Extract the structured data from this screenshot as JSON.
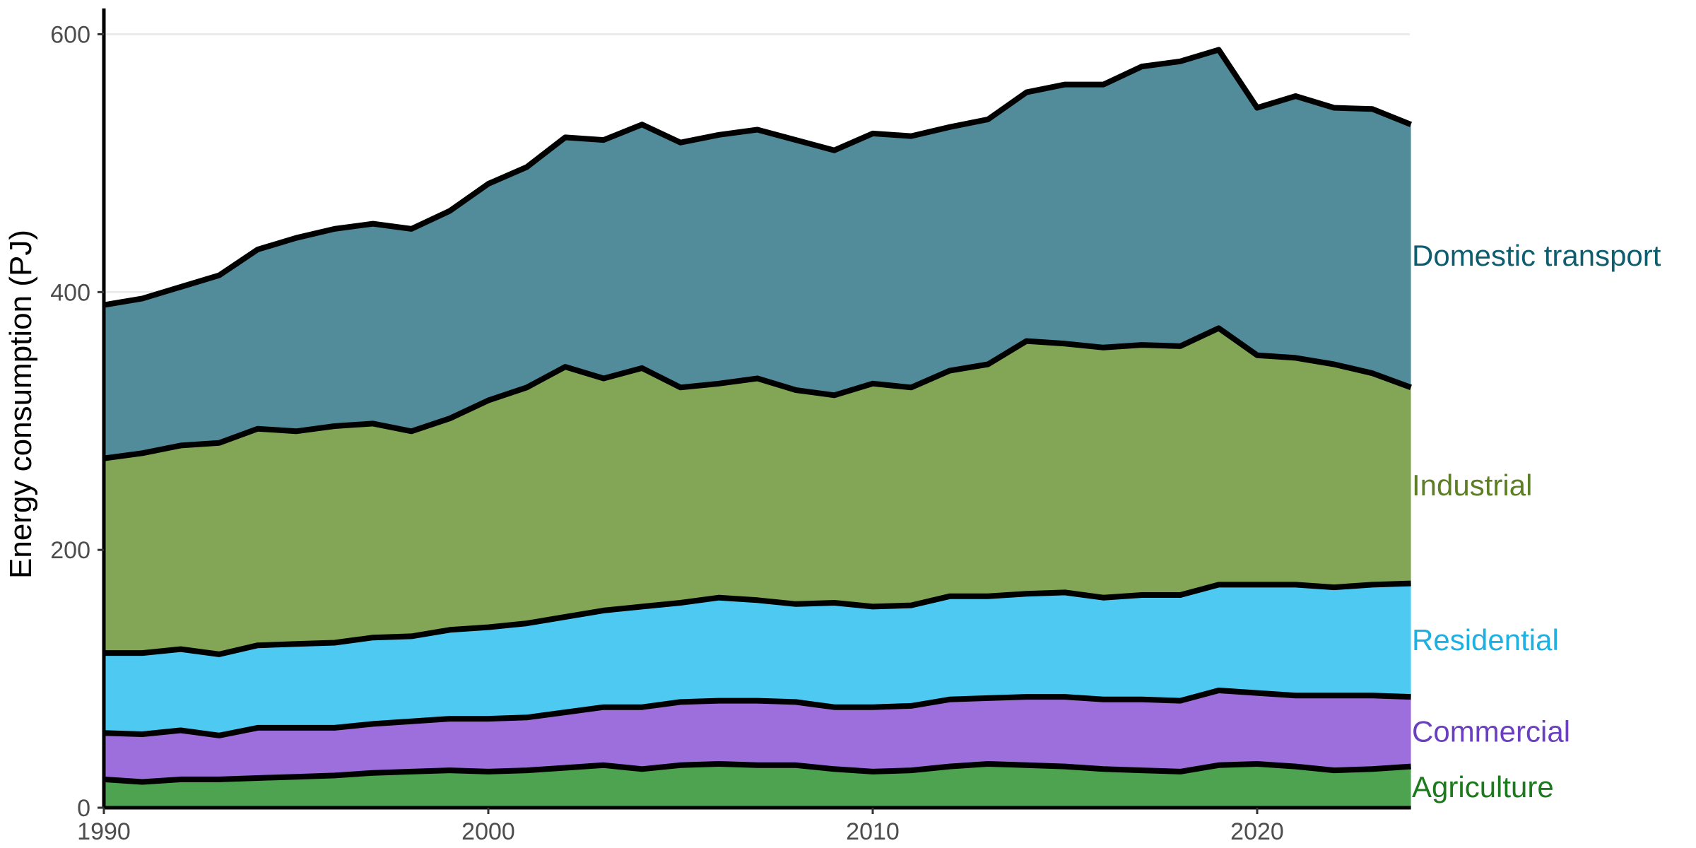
{
  "chart_data": {
    "type": "area",
    "stacked": true,
    "title": "",
    "xlabel": "",
    "ylabel": "Energy consumption (PJ)",
    "xlim": [
      1990,
      2024
    ],
    "ylim": [
      0,
      620
    ],
    "x_ticks": [
      1990,
      2000,
      2010,
      2020
    ],
    "y_ticks": [
      0,
      200,
      400,
      600
    ],
    "grid": "horizontal major lines",
    "legend": "direct labels at right end of each area",
    "x": [
      1990,
      1991,
      1992,
      1993,
      1994,
      1995,
      1996,
      1997,
      1998,
      1999,
      2000,
      2001,
      2002,
      2003,
      2004,
      2005,
      2006,
      2007,
      2008,
      2009,
      2010,
      2011,
      2012,
      2013,
      2014,
      2015,
      2016,
      2017,
      2018,
      2019,
      2020,
      2021,
      2022,
      2023,
      2024
    ],
    "series": [
      {
        "name": "Agriculture",
        "color": "#4da34f",
        "label_color": "#1b7a1b",
        "values": [
          22,
          20,
          22,
          22,
          23,
          24,
          25,
          27,
          28,
          29,
          28,
          29,
          31,
          33,
          30,
          33,
          34,
          33,
          33,
          30,
          28,
          29,
          32,
          34,
          33,
          32,
          30,
          29,
          28,
          33,
          34,
          32,
          29,
          30,
          32
        ]
      },
      {
        "name": "Commercial",
        "color": "#9c6fdd",
        "label_color": "#6a3fc1",
        "values": [
          36,
          37,
          38,
          34,
          39,
          38,
          37,
          38,
          39,
          40,
          41,
          41,
          43,
          45,
          48,
          49,
          49,
          50,
          49,
          48,
          50,
          50,
          52,
          51,
          53,
          54,
          54,
          55,
          55,
          58,
          55,
          55,
          58,
          57,
          54
        ]
      },
      {
        "name": "Residential",
        "color": "#4ecaf2",
        "label_color": "#1db0e0",
        "values": [
          62,
          63,
          63,
          63,
          64,
          65,
          66,
          67,
          66,
          69,
          71,
          73,
          74,
          75,
          78,
          77,
          80,
          78,
          76,
          81,
          78,
          78,
          80,
          79,
          80,
          81,
          79,
          81,
          82,
          82,
          84,
          86,
          84,
          86,
          88
        ]
      },
      {
        "name": "Industrial",
        "color": "#82a655",
        "label_color": "#5c7e25",
        "values": [
          151,
          155,
          158,
          164,
          168,
          165,
          168,
          166,
          159,
          164,
          176,
          183,
          194,
          180,
          185,
          167,
          166,
          172,
          166,
          161,
          173,
          169,
          175,
          180,
          196,
          193,
          194,
          194,
          193,
          199,
          178,
          176,
          173,
          164,
          152
        ]
      },
      {
        "name": "Domestic transport",
        "color": "#528b9a",
        "label_color": "#0e5e6f",
        "values": [
          119,
          120,
          123,
          130,
          139,
          150,
          153,
          155,
          157,
          161,
          168,
          171,
          178,
          185,
          189,
          190,
          193,
          193,
          194,
          190,
          194,
          195,
          189,
          190,
          193,
          201,
          204,
          216,
          221,
          216,
          192,
          203,
          199,
          205,
          204
        ]
      }
    ]
  }
}
